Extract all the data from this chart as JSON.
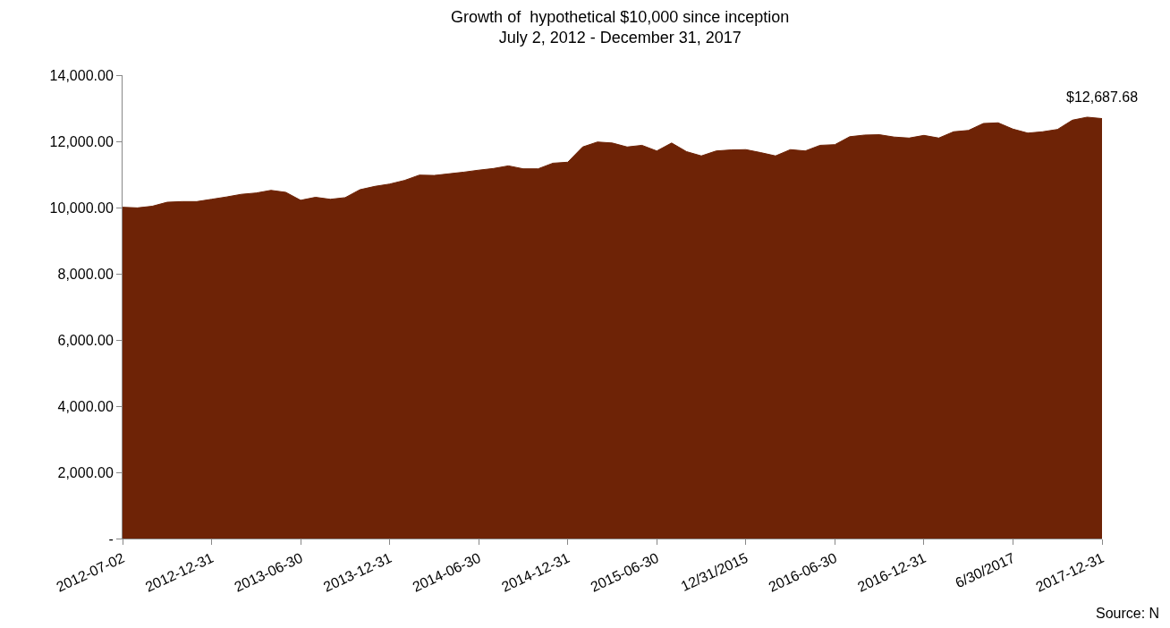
{
  "chart_data": {
    "type": "area",
    "title": "Growth of  hypothetical $10,000 since inception",
    "subtitle": "July 2, 2012 - December 31, 2017",
    "categories": [
      "2012-07-02",
      null,
      null,
      null,
      null,
      null,
      "2012-12-31",
      null,
      null,
      null,
      null,
      null,
      "2013-06-30",
      null,
      null,
      null,
      null,
      null,
      "2013-12-31",
      null,
      null,
      null,
      null,
      null,
      "2014-06-30",
      null,
      null,
      null,
      null,
      null,
      "2014-12-31",
      null,
      null,
      null,
      null,
      null,
      "2015-06-30",
      null,
      null,
      null,
      null,
      null,
      "12/31/2015",
      null,
      null,
      null,
      null,
      null,
      "2016-06-30",
      null,
      null,
      null,
      null,
      null,
      "2016-12-31",
      null,
      null,
      null,
      null,
      null,
      "6/30/2017",
      null,
      null,
      null,
      null,
      null,
      "2017-12-31"
    ],
    "series": [
      {
        "color": "#6e2306",
        "values": [
          10010,
          9990,
          10040,
          10160,
          10180,
          10180,
          10250,
          10320,
          10400,
          10440,
          10520,
          10460,
          10220,
          10310,
          10250,
          10300,
          10540,
          10640,
          10710,
          10820,
          10980,
          10970,
          11020,
          11070,
          11130,
          11180,
          11260,
          11170,
          11170,
          11340,
          11370,
          11830,
          11980,
          11950,
          11830,
          11880,
          11710,
          11950,
          11690,
          11560,
          11710,
          11740,
          11750,
          11660,
          11560,
          11750,
          11710,
          11880,
          11900,
          12140,
          12190,
          12200,
          12130,
          12100,
          12180,
          12100,
          12290,
          12330,
          12540,
          12560,
          12370,
          12250,
          12290,
          12360,
          12640,
          12730,
          12687.68
        ],
        "value_labels": [
          null,
          null,
          null,
          null,
          null,
          null,
          null,
          null,
          null,
          null,
          null,
          null,
          null,
          null,
          null,
          null,
          null,
          null,
          null,
          null,
          null,
          null,
          null,
          null,
          null,
          null,
          null,
          null,
          null,
          null,
          null,
          null,
          null,
          null,
          null,
          null,
          null,
          null,
          null,
          null,
          null,
          null,
          null,
          null,
          null,
          null,
          null,
          null,
          null,
          null,
          null,
          null,
          null,
          null,
          null,
          null,
          null,
          null,
          null,
          null,
          null,
          null,
          null,
          null,
          null,
          null,
          "$12,687.68"
        ]
      }
    ],
    "ylim": [
      0,
      14000
    ],
    "yticks": [
      {
        "value": 0,
        "label": "-"
      },
      {
        "value": 2000,
        "label": "2,000.00"
      },
      {
        "value": 4000,
        "label": "4,000.00"
      },
      {
        "value": 6000,
        "label": "6,000.00"
      },
      {
        "value": 8000,
        "label": "8,000.00"
      },
      {
        "value": 10000,
        "label": "10,000.00"
      },
      {
        "value": 12000,
        "label": "12,000.00"
      },
      {
        "value": 14000,
        "label": "14,000.00"
      }
    ],
    "grid": false,
    "annotations": [
      "Source: N"
    ]
  }
}
